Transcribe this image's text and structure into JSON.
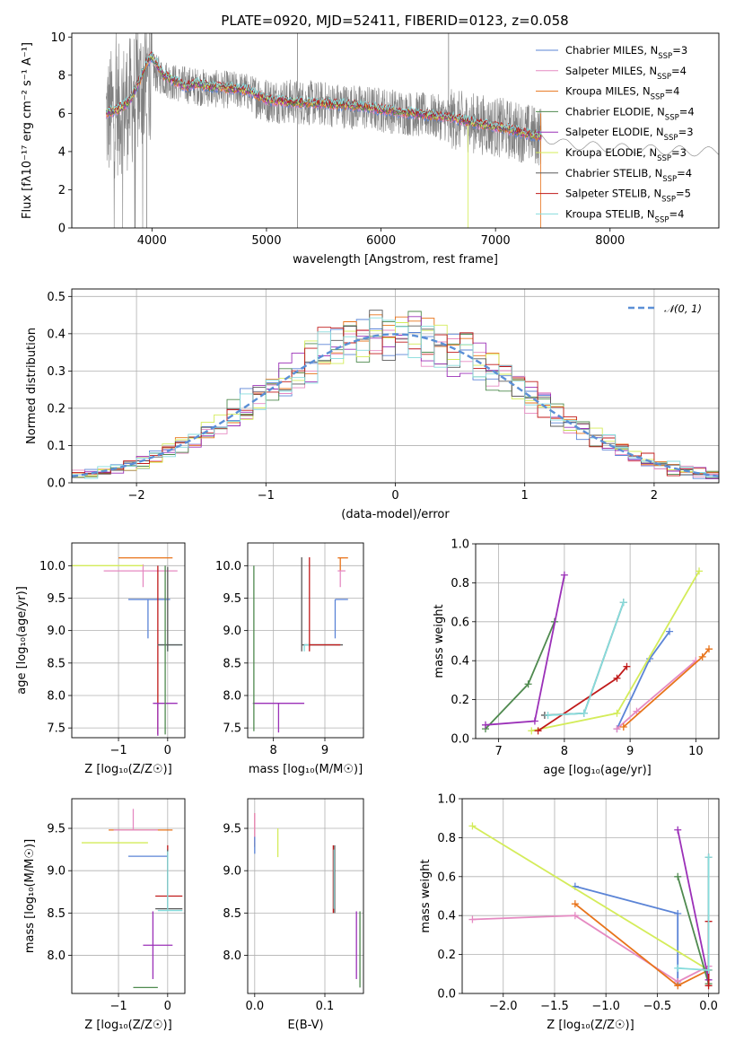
{
  "figure_title": "PLATE=0920, MJD=52411, FIBERID=0123, z=0.058",
  "colors": {
    "Chabrier MILES": "#5b84d6",
    "Salpeter MILES": "#e58ac2",
    "Kroupa MILES": "#e8731a",
    "Chabrier ELODIE": "#4f8a4f",
    "Salpeter ELODIE": "#9b30b8",
    "Kroupa ELODIE": "#d4ec5a",
    "Chabrier STELIB": "#5a5a5a",
    "Salpeter STELIB": "#c01a1a",
    "Kroupa STELIB": "#86dcdc",
    "data": "#808080",
    "gauss": "#5b8fd6",
    "grid": "#b0b0b0"
  },
  "chart_data": [
    {
      "id": "spectrum",
      "type": "line",
      "title": "PLATE=0920, MJD=52411, FIBERID=0123, z=0.058",
      "xlabel": "wavelength [Angstrom, rest frame]",
      "ylabel": "Flux [fλ10⁻¹⁷ erg cm⁻² s⁻¹ A⁻¹]",
      "xlim": [
        3300,
        8950
      ],
      "ylim": [
        0,
        10.2
      ],
      "xticks": [
        4000,
        5000,
        6000,
        7000,
        8000
      ],
      "yticks": [
        0,
        2,
        4,
        6,
        8,
        10
      ],
      "grid": false,
      "legend_position": "top-right",
      "legend": [
        {
          "name": "Chabrier MILES",
          "sub": "SSP",
          "n": "3"
        },
        {
          "name": "Salpeter MILES",
          "sub": "SSP",
          "n": "4"
        },
        {
          "name": "Kroupa MILES",
          "sub": "SSP",
          "n": "4"
        },
        {
          "name": "Chabrier ELODIE",
          "sub": "SSP",
          "n": "4"
        },
        {
          "name": "Salpeter ELODIE",
          "sub": "SSP",
          "n": "3"
        },
        {
          "name": "Kroupa ELODIE",
          "sub": "SSP",
          "n": "3"
        },
        {
          "name": "Chabrier STELIB",
          "sub": "SSP",
          "n": "4"
        },
        {
          "name": "Salpeter STELIB",
          "sub": "SSP",
          "n": "5"
        },
        {
          "name": "Kroupa STELIB",
          "sub": "SSP",
          "n": "4"
        }
      ],
      "model_continuum": {
        "x": [
          3600,
          3700,
          3800,
          3900,
          3950,
          4000,
          4100,
          4200,
          4300,
          4400,
          4500,
          4700,
          4850,
          5000,
          5200,
          5500,
          5800,
          6000,
          6300,
          6600,
          6900,
          7100,
          7300,
          7400
        ],
        "y": [
          6.0,
          6.2,
          6.6,
          7.8,
          8.6,
          9.0,
          8.0,
          7.7,
          7.4,
          7.6,
          7.4,
          7.3,
          7.2,
          6.7,
          6.6,
          6.5,
          6.4,
          6.2,
          6.0,
          5.8,
          5.4,
          5.2,
          4.9,
          4.8
        ]
      },
      "data_continuum": {
        "x": [
          3600,
          3800,
          4000,
          4200,
          4500,
          4800,
          5000,
          5500,
          6000,
          6500,
          7000,
          7400,
          7600,
          8000,
          8400,
          8800,
          8950
        ],
        "y": [
          5.8,
          6.5,
          8.2,
          7.6,
          7.3,
          7.2,
          6.7,
          6.5,
          6.2,
          5.8,
          5.3,
          4.8,
          4.4,
          4.2,
          4.1,
          4.0,
          4.0
        ]
      }
    },
    {
      "id": "residuals",
      "type": "histogram",
      "xlabel": "(data-model)/error",
      "ylabel": "Normed distribution",
      "xlim": [
        -2.5,
        2.5
      ],
      "ylim": [
        0,
        0.52
      ],
      "xticks": [
        -2,
        -1,
        0,
        1,
        2
      ],
      "xtick_labels": [
        "−2",
        "−1",
        "0",
        "1",
        "2"
      ],
      "yticks": [
        0.0,
        0.1,
        0.2,
        0.3,
        0.4,
        0.5
      ],
      "grid": true,
      "bin_width": 0.1,
      "legend_position": "top-right",
      "legend_label": "𝒩(0, 1)"
    },
    {
      "id": "age_vs_Z",
      "type": "errorbar",
      "xlabel": "Z [log₁₀(Z/Z☉)]",
      "ylabel": "age  [log₁₀(age/yr)]",
      "xlim": [
        -1.95,
        0.35
      ],
      "ylim": [
        7.35,
        10.35
      ],
      "xticks": [
        -1,
        0
      ],
      "xtick_labels": [
        "−1",
        "0"
      ],
      "yticks": [
        7.5,
        8.0,
        8.5,
        9.0,
        9.5,
        10.0
      ],
      "grid": true,
      "points": [
        {
          "model": "Kroupa MILES",
          "x": -0.5,
          "xerr": [
            0.5,
            0.6
          ],
          "y": 10.12,
          "yerr": [
            0,
            0
          ]
        },
        {
          "model": "Salpeter MILES",
          "x": -0.5,
          "xerr": [
            0.8,
            0.7
          ],
          "y": 9.92,
          "yerr": [
            0.25,
            0.1
          ]
        },
        {
          "model": "Kroupa ELODIE",
          "x": -1.0,
          "xerr": [
            1.0,
            0.5
          ],
          "y": 10.0,
          "yerr": [
            0,
            0
          ]
        },
        {
          "model": "Chabrier MILES",
          "x": -0.4,
          "xerr": [
            0.4,
            0.45
          ],
          "y": 9.48,
          "yerr": [
            0.6,
            0.0
          ]
        },
        {
          "model": "Salpeter STELIB",
          "x": -0.2,
          "xerr": [
            0,
            0
          ],
          "y": 10.0,
          "yerr": [
            2.6,
            0
          ]
        },
        {
          "model": "Kroupa STELIB",
          "x": 0.0,
          "xerr": [
            0.2,
            0.3
          ],
          "y": 8.78,
          "yerr": [
            0.1,
            0
          ]
        },
        {
          "model": "Chabrier STELIB",
          "x": 0.0,
          "xerr": [
            0.2,
            0.3
          ],
          "y": 8.78,
          "yerr": [
            0.1,
            1.2
          ]
        },
        {
          "model": "Salpeter ELODIE",
          "x": -0.2,
          "xerr": [
            0.1,
            0.4
          ],
          "y": 7.88,
          "yerr": [
            0.5,
            0
          ]
        },
        {
          "model": "Chabrier ELODIE",
          "x": -0.05,
          "xerr": [
            0,
            0
          ],
          "y": 10.0,
          "yerr": [
            2.6,
            0
          ]
        }
      ]
    },
    {
      "id": "age_vs_mass",
      "type": "errorbar",
      "xlabel": "mass [log₁₀(M/M☉)]",
      "ylabel": "",
      "xlim": [
        7.5,
        9.75
      ],
      "ylim": [
        7.35,
        10.35
      ],
      "xticks": [
        8,
        9
      ],
      "yticks": [
        7.5,
        8.0,
        8.5,
        9.0,
        9.5,
        10.0
      ],
      "grid": true,
      "points": [
        {
          "model": "Kroupa MILES",
          "x": 9.3,
          "xerr": [
            0.05,
            0.15
          ],
          "y": 10.12,
          "yerr": [
            0.2,
            0
          ]
        },
        {
          "model": "Salpeter MILES",
          "x": 9.3,
          "xerr": [
            0.05,
            0.1
          ],
          "y": 9.92,
          "yerr": [
            0.25,
            0
          ]
        },
        {
          "model": "Chabrier MILES",
          "x": 9.2,
          "xerr": [
            0,
            0.25
          ],
          "y": 9.48,
          "yerr": [
            0.6,
            0.0
          ]
        },
        {
          "model": "Chabrier STELIB",
          "x": 8.55,
          "xerr": [
            0,
            0.8
          ],
          "y": 8.78,
          "yerr": [
            0.1,
            1.35
          ]
        },
        {
          "model": "Kroupa STELIB",
          "x": 8.6,
          "xerr": [
            0.0,
            0.6
          ],
          "y": 8.78,
          "yerr": [
            0.1,
            0
          ]
        },
        {
          "model": "Salpeter STELIB",
          "x": 8.7,
          "xerr": [
            0,
            0.6
          ],
          "y": 8.78,
          "yerr": [
            0.1,
            1.35
          ]
        },
        {
          "model": "Salpeter ELODIE",
          "x": 8.1,
          "xerr": [
            0.5,
            0.5
          ],
          "y": 7.88,
          "yerr": [
            0.45,
            0
          ]
        },
        {
          "model": "Chabrier ELODIE",
          "x": 7.62,
          "xerr": [
            0,
            0
          ],
          "y": 10.0,
          "yerr": [
            2.55,
            0
          ]
        }
      ]
    },
    {
      "id": "weight_vs_age",
      "type": "line",
      "xlabel": "age  [log₁₀(age/yr)]",
      "ylabel": "mass weight",
      "xlim": [
        6.65,
        10.35
      ],
      "ylim": [
        0,
        1.0
      ],
      "xticks": [
        7,
        8,
        9,
        10
      ],
      "yticks": [
        0.0,
        0.2,
        0.4,
        0.6,
        0.8,
        1.0
      ],
      "grid": true,
      "series": [
        {
          "model": "Chabrier MILES",
          "x": [
            8.8,
            9.3,
            9.6
          ],
          "y": [
            0.05,
            0.41,
            0.55
          ]
        },
        {
          "model": "Salpeter MILES",
          "x": [
            8.8,
            9.1,
            10.0
          ],
          "y": [
            0.05,
            0.14,
            0.4
          ]
        },
        {
          "model": "Kroupa MILES",
          "x": [
            8.9,
            10.1,
            10.2
          ],
          "y": [
            0.06,
            0.42,
            0.46
          ]
        },
        {
          "model": "Chabrier ELODIE",
          "x": [
            6.8,
            7.45,
            7.85
          ],
          "y": [
            0.05,
            0.28,
            0.6
          ]
        },
        {
          "model": "Salpeter ELODIE",
          "x": [
            6.8,
            7.55,
            8.0
          ],
          "y": [
            0.07,
            0.09,
            0.84
          ]
        },
        {
          "model": "Kroupa ELODIE",
          "x": [
            7.5,
            8.8,
            10.05
          ],
          "y": [
            0.04,
            0.13,
            0.86
          ]
        },
        {
          "model": "Chabrier STELIB",
          "x": [
            7.7,
            8.3,
            8.9
          ],
          "y": [
            0.12,
            0.13,
            0.7
          ]
        },
        {
          "model": "Salpeter STELIB",
          "x": [
            7.6,
            8.8,
            8.95
          ],
          "y": [
            0.04,
            0.31,
            0.37
          ]
        },
        {
          "model": "Kroupa STELIB",
          "x": [
            7.75,
            8.3,
            8.9
          ],
          "y": [
            0.12,
            0.13,
            0.7
          ]
        }
      ]
    },
    {
      "id": "mass_vs_Z",
      "type": "errorbar",
      "xlabel": "Z [log₁₀(Z/Z☉)]",
      "ylabel": "mass [log₁₀(M/M☉)]",
      "xlim": [
        -1.95,
        0.35
      ],
      "ylim": [
        7.55,
        9.85
      ],
      "xticks": [
        -1,
        0
      ],
      "xtick_labels": [
        "−1",
        "0"
      ],
      "yticks": [
        8.0,
        8.5,
        9.0,
        9.5
      ],
      "grid": true,
      "points": [
        {
          "model": "Kroupa ELODIE",
          "x": -1.0,
          "xerr": [
            0.75,
            0.6
          ],
          "y": 9.33,
          "yerr": [
            0,
            0
          ]
        },
        {
          "model": "Kroupa MILES",
          "x": -0.6,
          "xerr": [
            0.6,
            0.7
          ],
          "y": 9.48,
          "yerr": [
            0,
            0
          ]
        },
        {
          "model": "Salpeter MILES",
          "x": -0.7,
          "xerr": [
            0.4,
            0.5
          ],
          "y": 9.48,
          "yerr": [
            0,
            0.25
          ]
        },
        {
          "model": "Chabrier MILES",
          "x": -0.4,
          "xerr": [
            0.4,
            0.4
          ],
          "y": 9.17,
          "yerr": [
            0,
            0
          ]
        },
        {
          "model": "Salpeter STELIB",
          "x": 0.0,
          "xerr": [
            0.25,
            0.3
          ],
          "y": 8.7,
          "yerr": [
            0,
            0.6
          ]
        },
        {
          "model": "Chabrier STELIB",
          "x": 0.0,
          "xerr": [
            0.25,
            0.3
          ],
          "y": 8.55,
          "yerr": [
            0,
            0.7
          ]
        },
        {
          "model": "Kroupa STELIB",
          "x": 0.0,
          "xerr": [
            0.2,
            0.3
          ],
          "y": 8.53,
          "yerr": [
            0,
            0.7
          ]
        },
        {
          "model": "Salpeter ELODIE",
          "x": -0.3,
          "xerr": [
            0.2,
            0.4
          ],
          "y": 8.12,
          "yerr": [
            0.4,
            0.4
          ]
        },
        {
          "model": "Chabrier ELODIE",
          "x": -0.3,
          "xerr": [
            0.4,
            0.1
          ],
          "y": 7.62,
          "yerr": [
            0,
            0
          ]
        }
      ]
    },
    {
      "id": "mass_vs_EBV",
      "type": "errorbar",
      "xlabel": "E(B-V)",
      "ylabel": "",
      "xlim": [
        -0.01,
        0.155
      ],
      "ylim": [
        7.55,
        9.85
      ],
      "xticks": [
        0.0,
        0.1
      ],
      "xtick_labels": [
        "0.0",
        "0.1"
      ],
      "yticks": [
        8.0,
        8.5,
        9.0,
        9.5
      ],
      "grid": true,
      "points": [
        {
          "model": "Kroupa MILES",
          "x": 0.0,
          "y": 9.48,
          "yerr": [
            0.2,
            0.2
          ]
        },
        {
          "model": "Salpeter MILES",
          "x": 0.0,
          "y": 9.48,
          "yerr": [
            0.15,
            0.2
          ]
        },
        {
          "model": "Chabrier MILES",
          "x": 0.0,
          "y": 9.3,
          "yerr": [
            0.1,
            0.1
          ]
        },
        {
          "model": "Kroupa ELODIE",
          "x": 0.033,
          "y": 9.33,
          "yerr": [
            0.17,
            0.17
          ]
        },
        {
          "model": "Salpeter STELIB",
          "x": 0.112,
          "y": 8.9,
          "yerr": [
            0.4,
            0.4
          ]
        },
        {
          "model": "Chabrier STELIB",
          "x": 0.114,
          "y": 8.9,
          "yerr": [
            0.4,
            0.4
          ]
        },
        {
          "model": "Kroupa STELIB",
          "x": 0.113,
          "y": 8.9,
          "yerr": [
            0.35,
            0.35
          ]
        },
        {
          "model": "Salpeter ELODIE",
          "x": 0.145,
          "y": 8.12,
          "yerr": [
            0.4,
            0.4
          ]
        },
        {
          "model": "Chabrier ELODIE",
          "x": 0.15,
          "y": 8.12,
          "yerr": [
            0.5,
            0.4
          ]
        }
      ]
    },
    {
      "id": "weight_vs_Z",
      "type": "line",
      "xlabel": "Z [log₁₀(Z/Z☉)]",
      "ylabel": "mass weight",
      "xlim": [
        -2.4,
        0.1
      ],
      "ylim": [
        0,
        1.0
      ],
      "xticks": [
        -2.0,
        -1.5,
        -1.0,
        -0.5,
        0.0
      ],
      "xtick_labels": [
        "−2.0",
        "−1.5",
        "−1.0",
        "−0.5",
        "0.0"
      ],
      "yticks": [
        0.0,
        0.2,
        0.4,
        0.6,
        0.8,
        1.0
      ],
      "grid": true,
      "series": [
        {
          "model": "Chabrier MILES",
          "x": [
            -1.3,
            -0.3,
            -0.3
          ],
          "y": [
            0.55,
            0.41,
            0.05
          ]
        },
        {
          "model": "Salpeter MILES",
          "x": [
            -2.3,
            -1.3,
            -0.3,
            0.0
          ],
          "y": [
            0.38,
            0.4,
            0.06,
            0.14
          ]
        },
        {
          "model": "Kroupa MILES",
          "x": [
            -1.3,
            -0.3,
            0.0
          ],
          "y": [
            0.46,
            0.04,
            0.12
          ]
        },
        {
          "model": "Kroupa ELODIE",
          "x": [
            -2.3,
            0.0
          ],
          "y": [
            0.86,
            0.12
          ]
        },
        {
          "model": "Chabrier ELODIE",
          "x": [
            -0.3,
            0.0
          ],
          "y": [
            0.6,
            0.05
          ]
        },
        {
          "model": "Salpeter ELODIE",
          "x": [
            -0.3,
            0.0
          ],
          "y": [
            0.84,
            0.07
          ]
        },
        {
          "model": "Chabrier STELIB",
          "x": [
            0.0,
            0.0
          ],
          "y": [
            0.12,
            0.7
          ]
        },
        {
          "model": "Salpeter STELIB",
          "x": [
            0.0,
            0.0
          ],
          "y": [
            0.04,
            0.37
          ]
        },
        {
          "model": "Kroupa STELIB",
          "x": [
            -0.3,
            0.0,
            0.0
          ],
          "y": [
            0.13,
            0.12,
            0.7
          ]
        }
      ]
    }
  ]
}
